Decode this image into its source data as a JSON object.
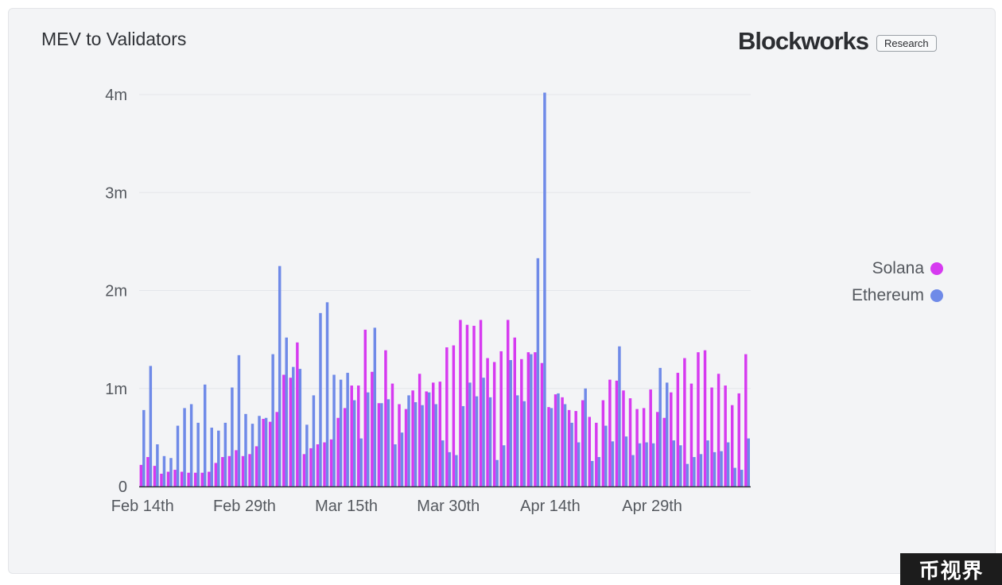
{
  "header": {
    "title": "MEV to Validators",
    "brand": "Blockworks",
    "badge": "Research"
  },
  "watermark": "币视界",
  "colors": {
    "solana": "#d63af0",
    "ethereum": "#6f8ae8"
  },
  "chart_data": {
    "type": "bar",
    "title": "MEV to Validators",
    "ylim": [
      0,
      4000000
    ],
    "yticks": [
      {
        "value": 0,
        "label": "0"
      },
      {
        "value": 1000000,
        "label": "1m"
      },
      {
        "value": 2000000,
        "label": "2m"
      },
      {
        "value": 3000000,
        "label": "3m"
      },
      {
        "value": 4000000,
        "label": "4m"
      }
    ],
    "xticks": [
      {
        "index": 0,
        "label": "Feb 14th"
      },
      {
        "index": 15,
        "label": "Feb 29th"
      },
      {
        "index": 30,
        "label": "Mar 15th"
      },
      {
        "index": 45,
        "label": "Mar 30th"
      },
      {
        "index": 60,
        "label": "Apr 14th"
      },
      {
        "index": 75,
        "label": "Apr 29th"
      }
    ],
    "legend": "right",
    "series": [
      {
        "name": "Solana",
        "color": "#d63af0",
        "values": [
          220000,
          300000,
          210000,
          130000,
          150000,
          170000,
          150000,
          140000,
          140000,
          140000,
          150000,
          240000,
          300000,
          310000,
          370000,
          310000,
          330000,
          410000,
          690000,
          660000,
          760000,
          1140000,
          1110000,
          1470000,
          330000,
          390000,
          430000,
          450000,
          480000,
          700000,
          800000,
          1030000,
          1030000,
          1600000,
          1170000,
          850000,
          1390000,
          1050000,
          840000,
          790000,
          980000,
          1150000,
          970000,
          1060000,
          1070000,
          1420000,
          1440000,
          1700000,
          1650000,
          1640000,
          1700000,
          1310000,
          1270000,
          1380000,
          1700000,
          1520000,
          1300000,
          1370000,
          1370000,
          1260000,
          810000,
          940000,
          910000,
          780000,
          770000,
          880000,
          710000,
          650000,
          880000,
          1090000,
          1080000,
          980000,
          900000,
          790000,
          800000,
          990000,
          760000,
          700000,
          960000,
          1160000,
          1310000,
          1050000,
          1370000,
          1390000,
          1010000,
          1150000,
          1030000,
          830000,
          950000,
          1350000
        ]
      },
      {
        "name": "Ethereum",
        "color": "#6f8ae8",
        "values": [
          780000,
          1230000,
          430000,
          310000,
          290000,
          620000,
          800000,
          840000,
          650000,
          1040000,
          600000,
          570000,
          650000,
          1010000,
          1340000,
          740000,
          640000,
          720000,
          700000,
          1350000,
          2250000,
          1520000,
          1220000,
          1200000,
          630000,
          930000,
          1770000,
          1880000,
          1140000,
          1090000,
          1160000,
          880000,
          490000,
          960000,
          1620000,
          850000,
          890000,
          430000,
          550000,
          930000,
          860000,
          830000,
          960000,
          840000,
          470000,
          350000,
          320000,
          820000,
          1060000,
          920000,
          1110000,
          910000,
          270000,
          420000,
          1290000,
          930000,
          870000,
          1350000,
          2330000,
          4020000,
          800000,
          950000,
          840000,
          650000,
          450000,
          1000000,
          260000,
          300000,
          620000,
          460000,
          1430000,
          510000,
          320000,
          440000,
          450000,
          440000,
          1210000,
          1060000,
          470000,
          420000,
          230000,
          300000,
          330000,
          470000,
          350000,
          360000,
          450000,
          190000,
          170000,
          490000
        ]
      }
    ]
  }
}
